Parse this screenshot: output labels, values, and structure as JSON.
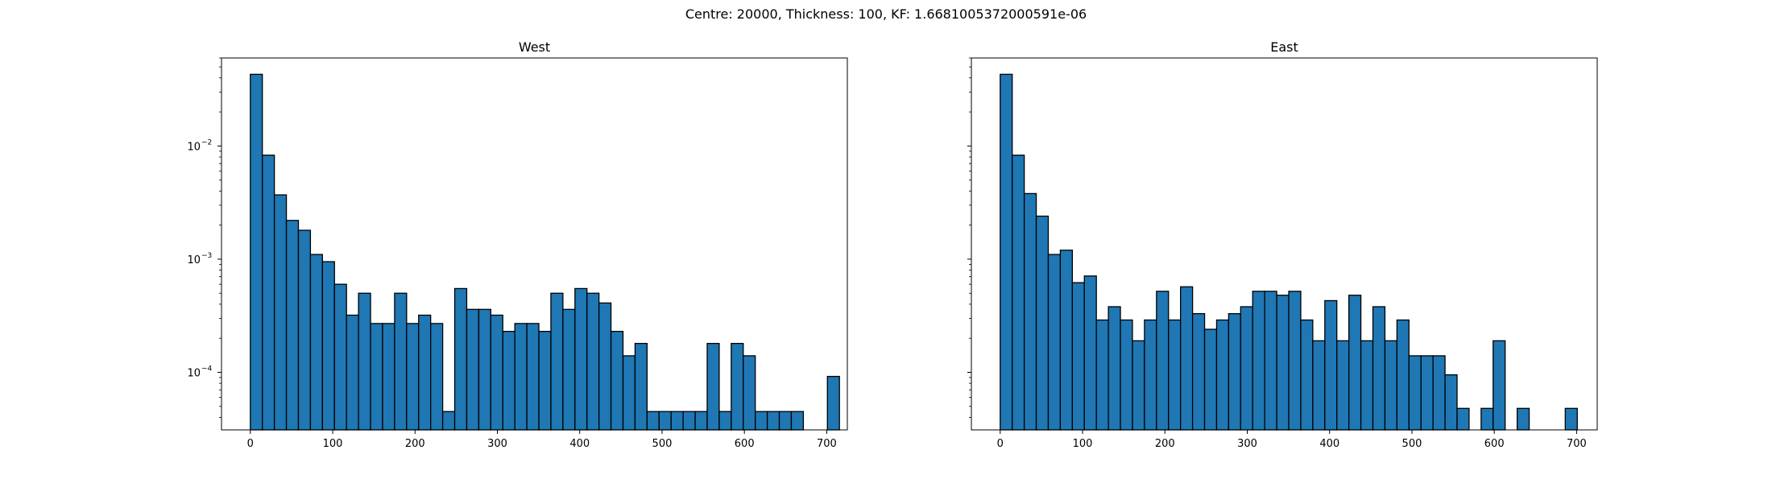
{
  "figure": {
    "suptitle": "Centre: 20000, Thickness: 100, KF: 1.6681005372000591e-06"
  },
  "chart_data": [
    {
      "type": "bar",
      "title": "West",
      "xlabel": "",
      "ylabel": "",
      "yscale": "log",
      "xlim": [
        -35,
        725
      ],
      "ylim": [
        3.1e-05,
        0.06
      ],
      "xticks": [
        0,
        100,
        200,
        300,
        400,
        500,
        600,
        700
      ],
      "yticks": [
        0.0001,
        0.001,
        0.01
      ],
      "ytick_labels": [
        [
          "10",
          "−4"
        ],
        [
          "10",
          "−3"
        ],
        [
          "10",
          "−2"
        ]
      ],
      "bin_width": 14.6,
      "bin_start": 0,
      "bar_color": "#1f77b4",
      "edge_color": "#000000",
      "values": [
        0.043,
        0.0083,
        0.0037,
        0.0022,
        0.0018,
        0.0011,
        0.00095,
        0.0006,
        0.00032,
        0.0005,
        0.00027,
        0.00027,
        0.0005,
        0.00027,
        0.00032,
        0.00027,
        4.5e-05,
        0.00055,
        0.00036,
        0.00036,
        0.00032,
        0.00023,
        0.00027,
        0.00027,
        0.00023,
        0.0005,
        0.00036,
        0.00055,
        0.0005,
        0.00041,
        0.00023,
        0.00014,
        0.00018,
        4.5e-05,
        4.5e-05,
        4.5e-05,
        4.5e-05,
        4.5e-05,
        0.00018,
        4.5e-05,
        0.00018,
        0.00014,
        4.5e-05,
        4.5e-05,
        4.5e-05,
        4.5e-05,
        0,
        0,
        9.2e-05
      ]
    },
    {
      "type": "bar",
      "title": "East",
      "xlabel": "",
      "ylabel": "",
      "yscale": "log",
      "xlim": [
        -35,
        725
      ],
      "ylim": [
        3.1e-05,
        0.06
      ],
      "xticks": [
        0,
        100,
        200,
        300,
        400,
        500,
        600,
        700
      ],
      "yticks": [
        0.0001,
        0.001,
        0.01
      ],
      "ytick_labels": [],
      "bin_width": 14.6,
      "bin_start": 0,
      "bar_color": "#1f77b4",
      "edge_color": "#000000",
      "values": [
        0.043,
        0.0083,
        0.0038,
        0.0024,
        0.0011,
        0.0012,
        0.00062,
        0.00071,
        0.00029,
        0.00038,
        0.00029,
        0.00019,
        0.00029,
        0.00052,
        0.00029,
        0.00057,
        0.00033,
        0.00024,
        0.00029,
        0.00033,
        0.00038,
        0.00052,
        0.00052,
        0.00048,
        0.00052,
        0.00029,
        0.00019,
        0.00043,
        0.00019,
        0.00048,
        0.00019,
        0.00038,
        0.00019,
        0.00029,
        0.00014,
        0.00014,
        0.00014,
        9.5e-05,
        4.8e-05,
        0,
        4.8e-05,
        0.00019,
        0,
        4.8e-05,
        0,
        0,
        0,
        4.8e-05
      ]
    }
  ]
}
